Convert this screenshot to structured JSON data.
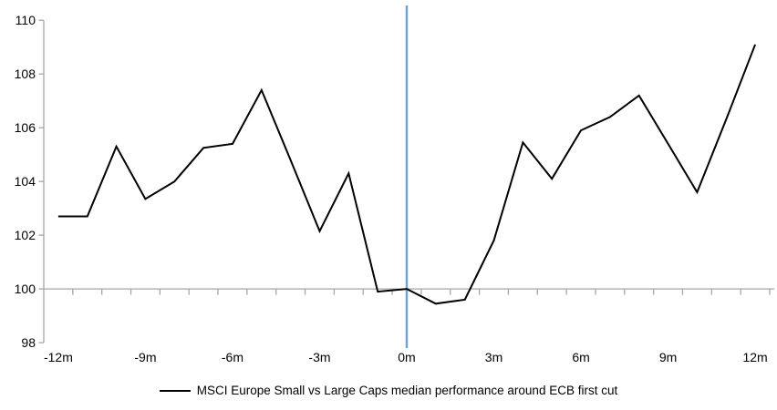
{
  "chart_data": {
    "type": "line",
    "title": "",
    "x": [
      -12,
      -11,
      -10,
      -9,
      -8,
      -7,
      -6,
      -5,
      -4,
      -3,
      -2,
      -1,
      0,
      1,
      2,
      3,
      4,
      5,
      6,
      7,
      8,
      9,
      10,
      11,
      12
    ],
    "series": [
      {
        "name": "MSCI Europe Small vs Large Caps median performance around ECB first cut",
        "color": "#000000",
        "values": [
          102.7,
          102.7,
          105.3,
          103.35,
          104.0,
          105.25,
          105.4,
          107.4,
          104.8,
          102.15,
          104.3,
          99.9,
          100.0,
          99.45,
          99.6,
          101.8,
          105.45,
          104.1,
          105.9,
          106.4,
          107.2,
          105.4,
          103.6,
          106.3,
          109.1
        ]
      }
    ],
    "x_tick_labels": [
      {
        "value": -12,
        "label": "-12m"
      },
      {
        "value": -9,
        "label": "-9m"
      },
      {
        "value": -6,
        "label": "-6m"
      },
      {
        "value": -3,
        "label": "-3m"
      },
      {
        "value": 0,
        "label": "0m"
      },
      {
        "value": 3,
        "label": "3m"
      },
      {
        "value": 6,
        "label": "6m"
      },
      {
        "value": 9,
        "label": "9m"
      },
      {
        "value": 12,
        "label": "12m"
      }
    ],
    "y_ticks": [
      98,
      100,
      102,
      104,
      106,
      108,
      110
    ],
    "xlim": [
      -12.5,
      12.5
    ],
    "ylim": [
      97.8,
      110.55
    ],
    "baseline_value": 100,
    "event_line": {
      "x": 0,
      "color": "#72a2cf"
    },
    "axis_color": "#a6a6a6",
    "grid": false,
    "legend_position": "bottom-center",
    "legend": {
      "label": "MSCI Europe Small vs Large Caps median performance around ECB first cut"
    }
  }
}
